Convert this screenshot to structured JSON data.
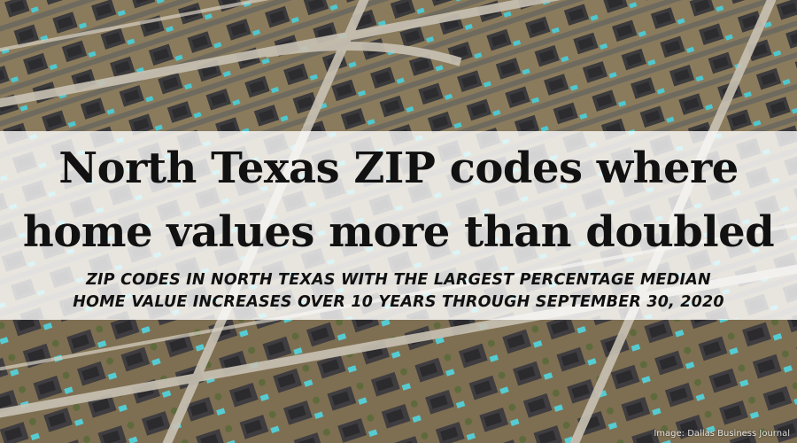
{
  "headline": {
    "line1": "North Texas ZIP codes where",
    "line2": "home values more than doubled"
  },
  "subheadline": {
    "line1": "ZIP CODES IN NORTH TEXAS WITH THE LARGEST PERCENTAGE MEDIAN",
    "line2": "HOME VALUE INCREASES OVER 10 YEARS THROUGH SEPTEMBER 30, 2020"
  },
  "photo_credit": "Image: Dallas Business Journal",
  "colors": {
    "banner": "#ffffff",
    "text": "#111111",
    "roof": "#3b3a3c",
    "lawn": "#8a7b5c",
    "pool": "#4fc7cf",
    "road": "#c9c2b4"
  }
}
